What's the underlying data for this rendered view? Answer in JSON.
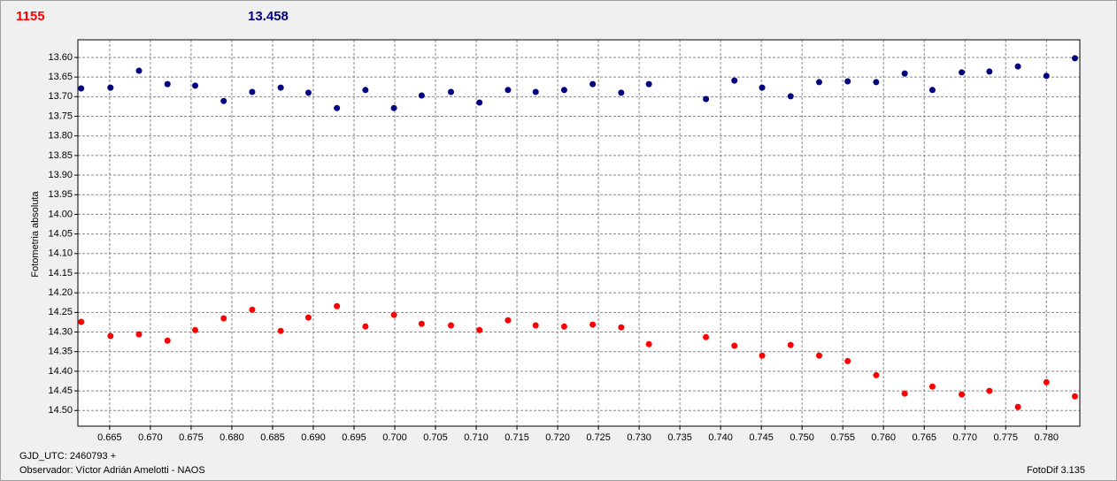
{
  "chart_data": {
    "type": "scatter",
    "header": [
      "1155",
      "13.458"
    ],
    "header_colors": [
      "#ff0000",
      "#000080"
    ],
    "ylabel": "Fotometria absoluta",
    "footer_left": [
      "GJD_UTC: 2460793 +",
      "Observador: Víctor Adrián Amelotti - NAOS"
    ],
    "footer_right": "FotoDif 3.135",
    "y_inverted": true,
    "grid": true,
    "xlim": [
      0.6611,
      0.7841
    ],
    "ylim": [
      13.555,
      14.54
    ],
    "xticks": [
      0.665,
      {
        "value": 0.67,
        "label": "0.670"
      },
      0.675,
      {
        "value": 0.68,
        "label": "0.680"
      },
      0.685,
      {
        "value": 0.69,
        "label": "0.690"
      },
      0.695,
      {
        "value": 0.7,
        "label": "0.700"
      },
      0.705,
      {
        "value": 0.71,
        "label": "0.710"
      },
      0.715,
      {
        "value": 0.72,
        "label": "0.720"
      },
      0.725,
      {
        "value": 0.73,
        "label": "0.730"
      },
      0.735,
      {
        "value": 0.74,
        "label": "0.740"
      },
      0.745,
      {
        "value": 0.75,
        "label": "0.750"
      },
      0.755,
      {
        "value": 0.76,
        "label": "0.760"
      },
      0.765,
      {
        "value": 0.77,
        "label": "0.770"
      },
      0.775,
      {
        "value": 0.78,
        "label": "0.780"
      }
    ],
    "yticks": [
      {
        "value": 13.6,
        "label": "13.60"
      },
      13.65,
      {
        "value": 13.7,
        "label": "13.70"
      },
      13.75,
      {
        "value": 13.8,
        "label": "13.80"
      },
      13.85,
      {
        "value": 13.9,
        "label": "13.90"
      },
      13.95,
      {
        "value": 14,
        "label": "14.00"
      },
      14.05,
      {
        "value": 14.1,
        "label": "14.10"
      },
      14.15,
      {
        "value": 14.2,
        "label": "14.20"
      },
      14.25,
      {
        "value": 14.3,
        "label": "14.30"
      },
      14.35,
      {
        "value": 14.4,
        "label": "14.40"
      },
      14.45,
      {
        "value": 14.5,
        "label": "14.50"
      }
    ],
    "x": [
      0.6615,
      0.6651,
      0.6686,
      0.6721,
      0.6755,
      0.679,
      0.6825,
      0.686,
      0.6894,
      0.6929,
      0.6964,
      0.6999,
      0.7033,
      0.7069,
      0.7104,
      0.7139,
      0.7173,
      0.7208,
      0.7243,
      0.7278,
      0.7312,
      0.7382,
      0.7417,
      0.7451,
      0.7486,
      0.7521,
      0.7556,
      0.7591,
      0.7626,
      0.766,
      0.7696,
      0.773,
      0.7765,
      0.78,
      0.7835
    ],
    "series": [
      {
        "color": "#000080",
        "values": [
          13.679,
          13.677,
          13.634,
          13.668,
          13.672,
          13.711,
          13.688,
          13.677,
          13.69,
          13.729,
          13.683,
          13.729,
          13.697,
          13.688,
          13.715,
          13.683,
          13.688,
          13.683,
          13.668,
          13.69,
          13.668,
          13.706,
          13.659,
          13.677,
          13.699,
          13.663,
          13.661,
          13.663,
          13.641,
          13.683,
          13.638,
          13.636,
          13.623,
          13.647,
          13.602
        ]
      },
      {
        "color": "#ff0000",
        "values": [
          14.274,
          14.31,
          14.306,
          14.322,
          14.295,
          14.265,
          14.243,
          14.297,
          14.263,
          14.234,
          14.286,
          14.256,
          14.279,
          14.283,
          14.295,
          14.27,
          14.283,
          14.286,
          14.281,
          14.288,
          14.331,
          14.313,
          14.335,
          14.36,
          14.333,
          14.36,
          14.374,
          14.41,
          14.457,
          14.439,
          14.459,
          14.45,
          14.491,
          14.428,
          14.464
        ]
      }
    ]
  }
}
